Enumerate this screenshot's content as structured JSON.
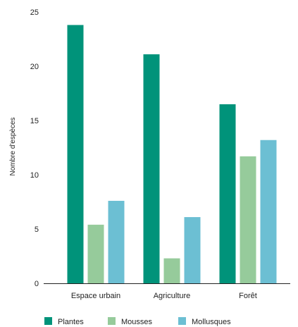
{
  "chart_data": {
    "type": "bar",
    "title": "",
    "xlabel": "",
    "ylabel": "Nombre d'espèces",
    "ylim": [
      0,
      25
    ],
    "yticks": [
      0,
      5,
      10,
      15,
      20,
      25
    ],
    "grid": false,
    "legend_position": "bottom",
    "categories": [
      "Espace urbain",
      "Agriculture",
      "Forêt"
    ],
    "series": [
      {
        "name": "Plantes",
        "color": "#00937a",
        "values": [
          23.8,
          21.1,
          16.5
        ]
      },
      {
        "name": "Mousses",
        "color": "#96cb9b",
        "values": [
          5.4,
          2.3,
          11.7
        ]
      },
      {
        "name": "Mollusques",
        "color": "#6cbfd3",
        "values": [
          7.6,
          6.1,
          13.2
        ]
      }
    ]
  }
}
